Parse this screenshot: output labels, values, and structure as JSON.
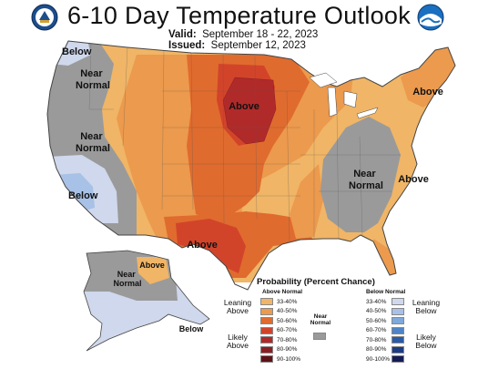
{
  "header": {
    "title": "6-10 Day Temperature Outlook",
    "valid_label": "Valid:",
    "valid_value": "September 18 - 22, 2023",
    "issued_label": "Issued:",
    "issued_value": "September 12, 2023"
  },
  "logos": {
    "left": "noaa-commerce-seal-icon",
    "right": "noaa-logo-icon"
  },
  "map_labels": {
    "below_nw": "Below",
    "near_normal_nw": "Near\nNormal",
    "near_normal_west": "Near\nNormal",
    "below_sw": "Below",
    "above_north": "Above",
    "above_south": "Above",
    "above_ne": "Above",
    "above_se": "Above",
    "near_normal_east": "Near\nNormal",
    "above_alaska": "Above",
    "near_normal_alaska": "Near\nNormal",
    "below_alaska": "Below"
  },
  "legend": {
    "title": "Probability (Percent Chance)",
    "above_header": "Above Normal",
    "below_header": "Below Normal",
    "near_header": "Near\nNormal",
    "leaning_above": "Leaning\nAbove",
    "likely_above": "Likely\nAbove",
    "leaning_below": "Leaning\nBelow",
    "likely_below": "Likely\nBelow",
    "ranges": [
      "33-40%",
      "40-50%",
      "50-60%",
      "60-70%",
      "70-80%",
      "80-90%",
      "90-100%"
    ],
    "above_colors": [
      "#f0b566",
      "#ec9a4d",
      "#e06b2e",
      "#d2442a",
      "#b02a2a",
      "#8a1f23",
      "#5e1218"
    ],
    "below_colors": [
      "#cfd8ec",
      "#a8c1e6",
      "#7ea9da",
      "#4f84c6",
      "#2a5aa8",
      "#1c3c86",
      "#141c56"
    ],
    "near_color": "#9a9a9a"
  }
}
